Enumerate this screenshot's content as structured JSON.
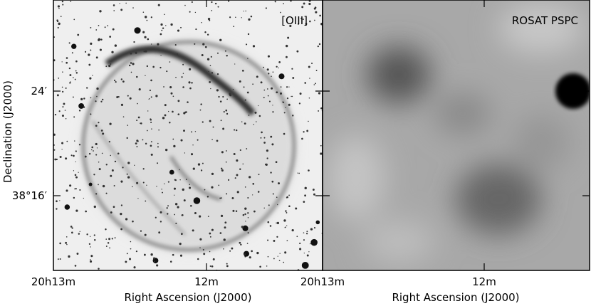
{
  "panels": [
    {
      "label": "[OIII]",
      "x_tick_labels": [
        "20h13m",
        "12m"
      ],
      "x_axis_label": "Right Ascension (J2000)"
    },
    {
      "label": "ROSAT PSPC",
      "x_tick_labels": [
        "20h13m",
        "12m"
      ],
      "x_axis_label": "Right Ascension (J2000)"
    }
  ],
  "y_axis_label": "Declination (J2000)",
  "y_tick_labels": [
    "24′",
    "38°16′"
  ]
}
